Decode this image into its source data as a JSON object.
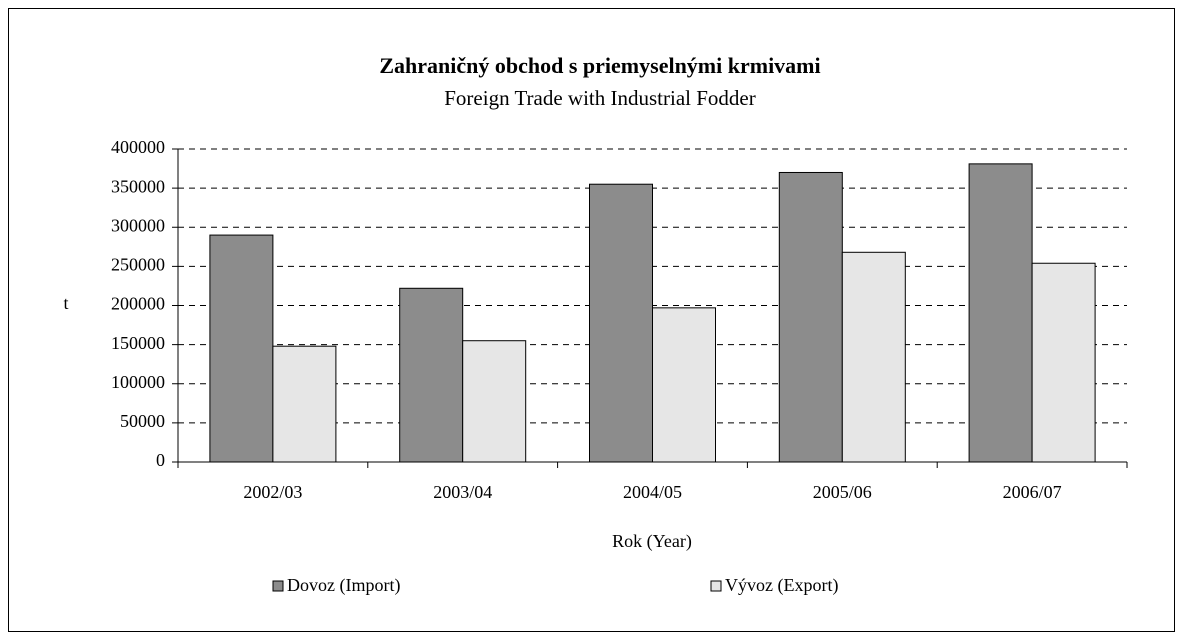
{
  "chart_data": {
    "type": "bar",
    "title": "Zahraničný obchod s priemyselnými krmivami",
    "subtitle": "Foreign Trade with Industrial Fodder",
    "y_label": "t",
    "x_label": "Rok (Year)",
    "categories": [
      "2002/03",
      "2003/04",
      "2004/05",
      "2005/06",
      "2006/07"
    ],
    "series": [
      {
        "name": "Dovoz (Import)",
        "color": "#8c8c8c",
        "values": [
          290000,
          222000,
          355000,
          370000,
          381000
        ]
      },
      {
        "name": "Vývoz (Export)",
        "color": "#e6e6e6",
        "values": [
          148000,
          155000,
          197000,
          268000,
          254000
        ]
      }
    ],
    "ylim": [
      0,
      400000
    ],
    "yticks": [
      0,
      50000,
      100000,
      150000,
      200000,
      250000,
      300000,
      350000,
      400000
    ],
    "grid": true,
    "legend": "bottom"
  }
}
